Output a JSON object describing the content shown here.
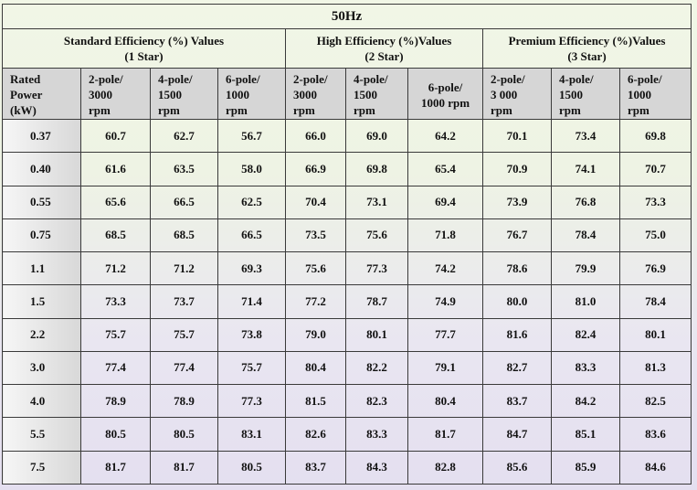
{
  "title": "50Hz",
  "groups": [
    {
      "line1": "Standard Efficiency (%) Values",
      "line2": "(1 Star)"
    },
    {
      "line1": "High Efficiency (%)Values",
      "line2": "(2 Star)"
    },
    {
      "line1": "Premium Efficiency (%)Values",
      "line2": "(3 Star)"
    }
  ],
  "rated_power_header": [
    "Rated",
    "Power",
    "(kW)"
  ],
  "column_headers": [
    [
      "2-pole/",
      "3000",
      "rpm"
    ],
    [
      "4-pole/",
      "1500",
      "rpm"
    ],
    [
      "6-pole/",
      "1000",
      "rpm"
    ],
    [
      "2-pole/",
      "3000",
      "rpm"
    ],
    [
      "4-pole/",
      "1500",
      "rpm"
    ],
    [
      "6-pole/",
      "1000 rpm"
    ],
    [
      "2-pole/",
      "3 000",
      "rpm"
    ],
    [
      "4-pole/",
      "1500",
      "rpm"
    ],
    [
      "6-pole/",
      "1000",
      "rpm"
    ]
  ],
  "rows": [
    {
      "power": "0.37",
      "values": [
        "60.7",
        "62.7",
        "56.7",
        "66.0",
        "69.0",
        "64.2",
        "70.1",
        "73.4",
        "69.8"
      ]
    },
    {
      "power": "0.40",
      "values": [
        "61.6",
        "63.5",
        "58.0",
        "66.9",
        "69.8",
        "65.4",
        "70.9",
        "74.1",
        "70.7"
      ]
    },
    {
      "power": "0.55",
      "values": [
        "65.6",
        "66.5",
        "62.5",
        "70.4",
        "73.1",
        "69.4",
        "73.9",
        "76.8",
        "73.3"
      ]
    },
    {
      "power": "0.75",
      "values": [
        "68.5",
        "68.5",
        "66.5",
        "73.5",
        "75.6",
        "71.8",
        "76.7",
        "78.4",
        "75.0"
      ]
    },
    {
      "power": "1.1",
      "values": [
        "71.2",
        "71.2",
        "69.3",
        "75.6",
        "77.3",
        "74.2",
        "78.6",
        "79.9",
        "76.9"
      ]
    },
    {
      "power": "1.5",
      "values": [
        "73.3",
        "73.7",
        "71.4",
        "77.2",
        "78.7",
        "74.9",
        "80.0",
        "81.0",
        "78.4"
      ]
    },
    {
      "power": "2.2",
      "values": [
        "75.7",
        "75.7",
        "73.8",
        "79.0",
        "80.1",
        "77.7",
        "81.6",
        "82.4",
        "80.1"
      ]
    },
    {
      "power": "3.0",
      "values": [
        "77.4",
        "77.4",
        "75.7",
        "80.4",
        "82.2",
        "79.1",
        "82.7",
        "83.3",
        "81.3"
      ]
    },
    {
      "power": "4.0",
      "values": [
        "78.9",
        "78.9",
        "77.3",
        "81.5",
        "82.3",
        "80.4",
        "83.7",
        "84.2",
        "82.5"
      ]
    },
    {
      "power": "5.5",
      "values": [
        "80.5",
        "80.5",
        "83.1",
        "82.6",
        "83.3",
        "81.7",
        "84.7",
        "85.1",
        "83.6"
      ]
    },
    {
      "power": "7.5",
      "values": [
        "81.7",
        "81.7",
        "80.5",
        "83.7",
        "84.3",
        "82.8",
        "85.6",
        "85.9",
        "84.6"
      ]
    }
  ]
}
